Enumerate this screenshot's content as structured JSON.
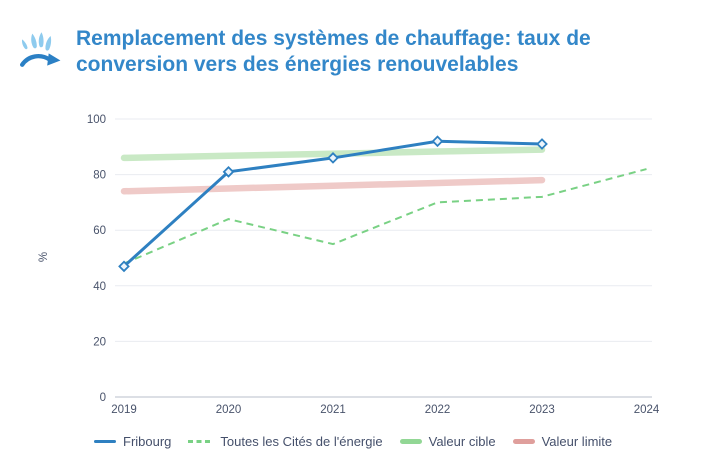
{
  "header": {
    "icon": "heating-conversion-icon",
    "title_line1": "Remplacement des systèmes de chauffage: taux de",
    "title_line2": "conversion vers des énergies renouvelables"
  },
  "colors": {
    "title": "#3387c9",
    "tick_text": "#49536b",
    "grid": "#e9ebf1",
    "axis": "#c7ccd5",
    "icon_flames": "#8ecbee",
    "icon_arrow": "#2b80c5"
  },
  "chart_data": {
    "type": "line",
    "title": "Remplacement des systèmes de chauffage: taux de conversion vers des énergies renouvelables",
    "x": [
      "2019",
      "2020",
      "2021",
      "2022",
      "2023",
      "2024"
    ],
    "xlabel": "",
    "ylabel": "%",
    "ylim": [
      0,
      100
    ],
    "yticks": [
      0,
      20,
      40,
      60,
      80,
      100
    ],
    "grid": true,
    "legend_position": "bottom",
    "series": [
      {
        "name": "Fribourg",
        "style": "solid",
        "marker": "diamond",
        "color": "#2e80c1",
        "marker_fill": "#edf5fc",
        "values": [
          47,
          81,
          86,
          92,
          91,
          null
        ]
      },
      {
        "name": "Toutes les Cités de l'énergie",
        "style": "dashed",
        "color": "#79d184",
        "values": [
          48,
          64,
          55,
          70,
          72,
          82
        ]
      },
      {
        "name": "Valeur cible",
        "style": "band",
        "color": "#c9e9c5",
        "legend_color": "#92d795",
        "values": [
          86,
          86.8,
          87.5,
          88.3,
          89,
          null
        ]
      },
      {
        "name": "Valeur limite",
        "style": "band",
        "color": "#efcac8",
        "legend_color": "#df9f9c",
        "values": [
          74,
          75,
          76,
          77,
          78,
          null
        ]
      }
    ]
  }
}
